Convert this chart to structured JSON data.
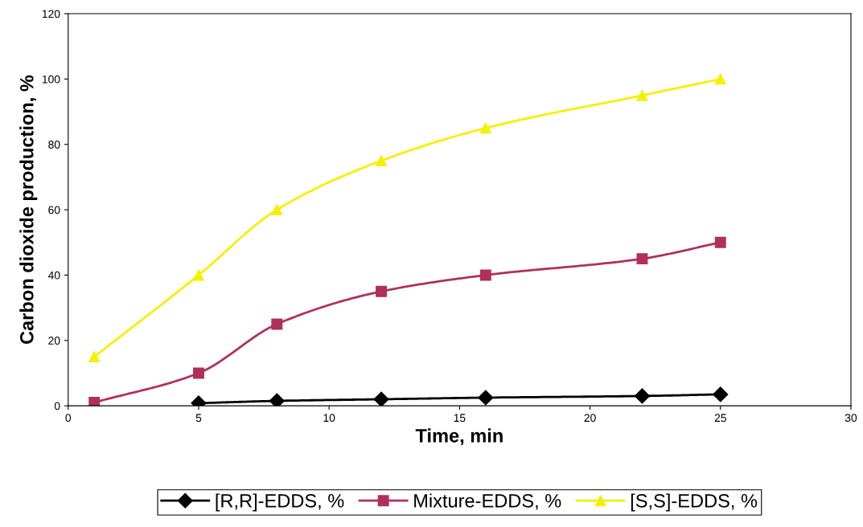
{
  "chart_data": {
    "type": "line",
    "xlabel": "Time, min",
    "ylabel": "Carbon dioxide production, %",
    "x": [
      1,
      5,
      8,
      12,
      16,
      22,
      25
    ],
    "series": [
      {
        "name": "[R,R]-EDDS, %",
        "color": "#000000",
        "marker": "diamond",
        "values": [
          null,
          0.8,
          1.5,
          2,
          2.5,
          3,
          3.5
        ]
      },
      {
        "name": "Mixture-EDDS, %",
        "color": "#b0305a",
        "marker": "square",
        "values": [
          1,
          10,
          25,
          35,
          40,
          45,
          50
        ]
      },
      {
        "name": "[S,S]-EDDS, %",
        "color": "#f5f000",
        "marker": "triangle",
        "values": [
          15,
          40,
          60,
          75,
          85,
          95,
          100
        ]
      }
    ],
    "xlim": [
      0,
      30
    ],
    "xticks": [
      0,
      5,
      10,
      15,
      20,
      25,
      30
    ],
    "ylim": [
      0,
      120
    ],
    "yticks": [
      0,
      20,
      40,
      60,
      80,
      100,
      120
    ],
    "grid": false,
    "legend": "bottom",
    "line_style": "solid"
  }
}
